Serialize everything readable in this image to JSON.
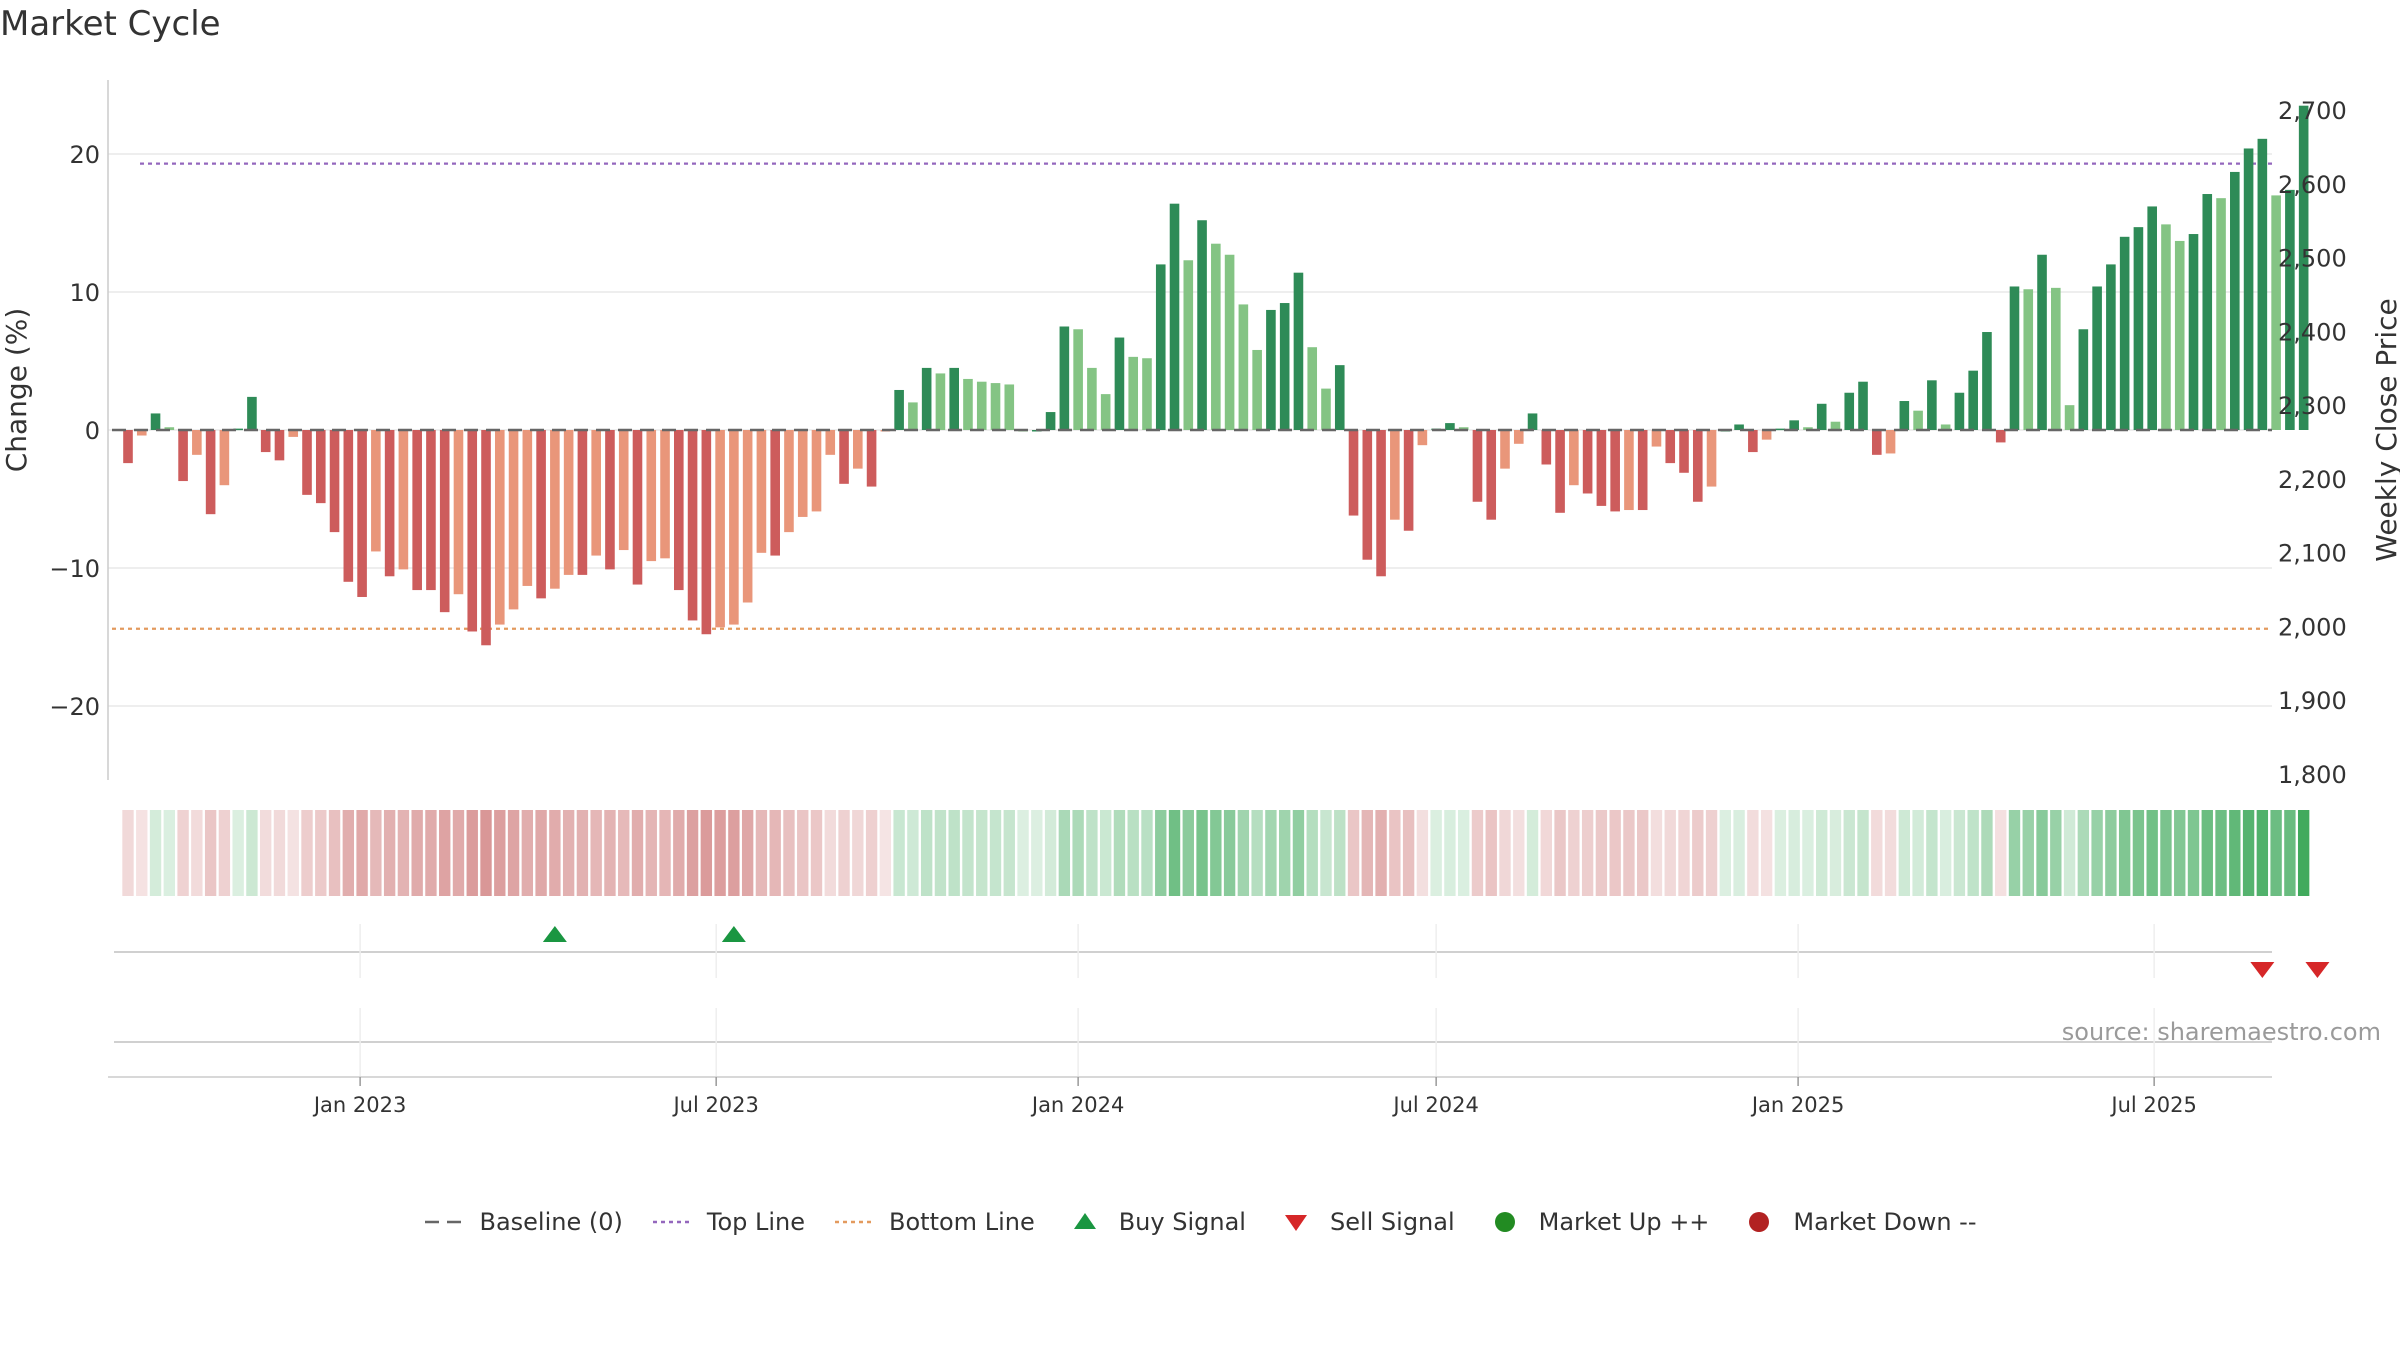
{
  "title": "Market Cycle",
  "source": "source: sharemaestro.com",
  "chart_data": {
    "type": "bar",
    "ylabel_left": "Change (%)",
    "ylabel_right": "Weekly Close Price",
    "ylim_left": [
      -25,
      25
    ],
    "ylim_right": [
      1800,
      2730
    ],
    "yticks_left": [
      20,
      10,
      0,
      -10,
      -20
    ],
    "ytick_labels_left": [
      "20",
      "10",
      "0",
      "−10",
      "−20"
    ],
    "yticks_right": [
      2700,
      2600,
      2500,
      2400,
      2300,
      2200,
      2100,
      2000,
      1900,
      1800
    ],
    "ytick_labels_right": [
      "2,700",
      "2,600",
      "2,500",
      "2,400",
      "2,300",
      "2,200",
      "2,100",
      "2,000",
      "1,900",
      "1,800"
    ],
    "top_line": 19.3,
    "bottom_line": -14.4,
    "x_start": "2022-09-05",
    "x_end": "2025-09-29",
    "xticks": [
      {
        "date": "2023-01-01",
        "label": "Jan 2023"
      },
      {
        "date": "2023-07-01",
        "label": "Jul 2023"
      },
      {
        "date": "2024-01-01",
        "label": "Jan 2024"
      },
      {
        "date": "2024-07-01",
        "label": "Jul 2024"
      },
      {
        "date": "2025-01-01",
        "label": "Jan 2025"
      },
      {
        "date": "2025-07-01",
        "label": "Jul 2025"
      }
    ],
    "values": [
      -2.4,
      -0.4,
      1.2,
      0.2,
      -3.7,
      -1.8,
      -6.1,
      -4.0,
      0.1,
      2.4,
      -1.6,
      -2.2,
      -0.5,
      -4.7,
      -5.3,
      -7.4,
      -11.0,
      -12.1,
      -8.8,
      -10.6,
      -10.1,
      -11.6,
      -11.6,
      -13.2,
      -11.9,
      -14.6,
      -15.6,
      -14.1,
      -13.0,
      -11.3,
      -12.2,
      -11.5,
      -10.5,
      -10.5,
      -9.1,
      -10.1,
      -8.7,
      -11.2,
      -9.5,
      -9.3,
      -11.6,
      -13.8,
      -14.8,
      -14.3,
      -14.1,
      -12.5,
      -8.9,
      -9.1,
      -7.4,
      -6.3,
      -5.9,
      -1.8,
      -3.9,
      -2.8,
      -4.1,
      -0.1,
      2.9,
      2.0,
      4.5,
      4.1,
      4.5,
      3.7,
      3.5,
      3.4,
      3.3,
      0.0,
      0.0,
      1.3,
      7.5,
      7.3,
      4.5,
      2.6,
      6.7,
      5.3,
      5.2,
      12.0,
      16.4,
      12.3,
      15.2,
      13.5,
      12.7,
      9.1,
      5.8,
      8.7,
      9.2,
      11.4,
      6.0,
      3.0,
      4.7,
      -6.2,
      -9.4,
      -10.6,
      -6.5,
      -7.3,
      -1.1,
      0.1,
      0.5,
      0.2,
      -5.2,
      -6.5,
      -2.8,
      -1.0,
      1.2,
      -2.5,
      -6.0,
      -4.0,
      -4.6,
      -5.5,
      -5.9,
      -5.8,
      -5.8,
      -1.2,
      -2.4,
      -3.1,
      -5.2,
      -4.1,
      0.0,
      0.4,
      -1.6,
      -0.7,
      0.1,
      0.7,
      0.2,
      1.9,
      0.6,
      2.7,
      3.5,
      -1.8,
      -1.7,
      2.1,
      1.4,
      3.6,
      0.4,
      2.7,
      4.3,
      7.1,
      -0.9,
      10.4,
      10.2,
      12.7,
      10.3,
      1.8,
      7.3,
      10.4,
      12.0,
      14.0,
      14.7,
      16.2,
      14.9,
      13.7,
      14.2,
      17.1,
      16.8,
      18.7,
      20.4,
      21.1,
      17.0,
      17.4,
      23.5
    ],
    "signals": {
      "buy": [
        "2023-04-10",
        "2023-07-10"
      ],
      "sell": [
        "2025-08-25",
        "2025-09-22"
      ]
    },
    "legend": [
      "Baseline (0)",
      "Top Line",
      "Bottom Line",
      "Buy Signal",
      "Sell Signal",
      "Market Up ++",
      "Market Down --"
    ]
  },
  "colors": {
    "up_dark": "#2e8b57",
    "up_light": "#84c484",
    "down_dark": "#cd5c5c",
    "down_light": "#e9967a",
    "top_line": "#9467bd",
    "bottom_line": "#e39a5e",
    "buy": "#1a9641",
    "sell": "#d62728",
    "market_up": "#228b22",
    "market_down": "#b22222",
    "baseline": "#666666"
  }
}
